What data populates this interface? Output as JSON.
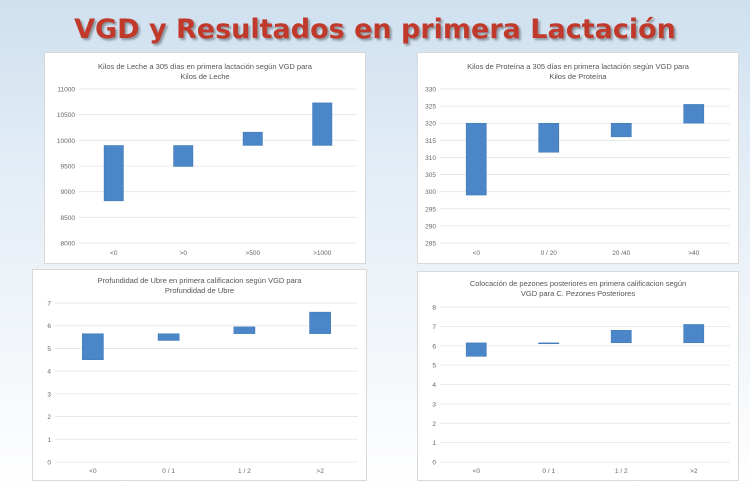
{
  "slide": {
    "title": "VGD y Resultados en primera Lactación"
  },
  "colors": {
    "bar": "#4a86c8",
    "bar_edge": "#2e6ca8",
    "grid": "#e4e4e4",
    "text": "#666666",
    "title": "#c0392b"
  },
  "chart_data": [
    {
      "type": "bar",
      "subtype": "floating",
      "title_line1": "Kilos de Leche a 305 días en primera lactación según VGD para",
      "title_line2": "Kilos de Leche",
      "categories": [
        "<0",
        ">0",
        ">500",
        ">1000"
      ],
      "ranges": [
        [
          8820,
          9900
        ],
        [
          9490,
          9900
        ],
        [
          9900,
          10160
        ],
        [
          9900,
          10730
        ]
      ],
      "yticks": [
        8000,
        8500,
        9000,
        9500,
        10000,
        10500,
        11000
      ],
      "ylim": [
        8000,
        11000
      ],
      "grid": true
    },
    {
      "type": "bar",
      "subtype": "floating",
      "title_line1": "Kilos de Proteína a 305 días en primera lactación según VGD para",
      "title_line2": "Kilos de Proteína",
      "categories": [
        "<0",
        "0 / 20",
        "20 /40",
        ">40"
      ],
      "ranges": [
        [
          299,
          320
        ],
        [
          311.5,
          320
        ],
        [
          316,
          320
        ],
        [
          320,
          325.5
        ]
      ],
      "yticks": [
        285,
        290,
        295,
        300,
        305,
        310,
        315,
        320,
        325,
        330
      ],
      "ylim": [
        285,
        330
      ],
      "grid": true
    },
    {
      "type": "bar",
      "subtype": "floating",
      "title_line1": "Profundidad de Ubre en primera calificacion según VGD para",
      "title_line2": "Profundidad de Ubre",
      "categories": [
        "<0",
        "0 / 1",
        "1 / 2",
        ">2"
      ],
      "ranges": [
        [
          4.5,
          5.65
        ],
        [
          5.35,
          5.65
        ],
        [
          5.65,
          5.95
        ],
        [
          5.65,
          6.6
        ]
      ],
      "yticks": [
        0,
        1,
        2,
        3,
        4,
        5,
        6,
        7
      ],
      "ytick_labels": [
        "0",
        "1",
        "2",
        "3",
        "4",
        "5",
        "6",
        "7"
      ],
      "ylim": [
        0,
        7
      ],
      "grid": true
    },
    {
      "type": "bar",
      "subtype": "floating",
      "title_line1": "Colocación de pezones posteriores en primera calificacion según",
      "title_line2": "VGD para C. Pezones Posteriores",
      "categories": [
        "<0",
        "0 / 1",
        "1 / 2",
        ">2"
      ],
      "ranges": [
        [
          5.45,
          6.15
        ],
        [
          6.1,
          6.15
        ],
        [
          6.15,
          6.8
        ],
        [
          6.15,
          7.1
        ]
      ],
      "yticks": [
        0,
        1,
        2,
        3,
        4,
        5,
        6,
        7,
        8
      ],
      "ylim": [
        0,
        8
      ],
      "grid": true
    }
  ]
}
